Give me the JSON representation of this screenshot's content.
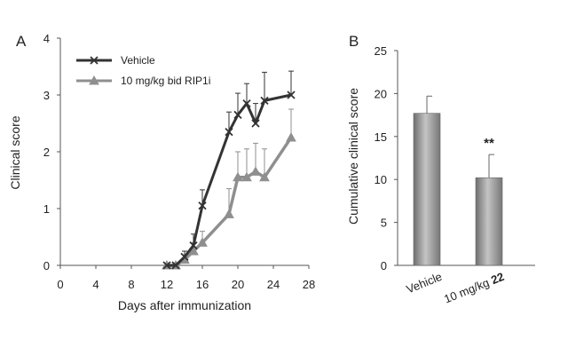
{
  "chart_data": [
    {
      "panel": "A",
      "type": "line",
      "xlabel": "Days after immunization",
      "ylabel": "Clinical score",
      "xlim": [
        0,
        28
      ],
      "ylim": [
        0,
        4
      ],
      "x_ticks": [
        0,
        4,
        8,
        12,
        16,
        20,
        24,
        28
      ],
      "y_ticks": [
        0,
        1,
        2,
        3,
        4
      ],
      "legend_position": "top-left",
      "series": [
        {
          "name": "Vehicle",
          "marker": "x",
          "color": "#333333",
          "x": [
            12,
            13,
            14,
            15,
            16,
            19,
            20,
            21,
            22,
            23,
            26
          ],
          "y": [
            0,
            0,
            0.15,
            0.35,
            1.05,
            2.35,
            2.65,
            2.85,
            2.5,
            2.9,
            3.0
          ],
          "err": [
            0,
            0,
            0.1,
            0.2,
            0.28,
            0.35,
            0.38,
            0.35,
            0.35,
            0.5,
            0.42
          ]
        },
        {
          "name": "10 mg/kg bid RIP1i",
          "marker": "triangle",
          "color": "#8f8f8f",
          "x": [
            12,
            13,
            14,
            15,
            16,
            19,
            20,
            21,
            22,
            23,
            26
          ],
          "y": [
            0,
            0,
            0.1,
            0.25,
            0.4,
            0.9,
            1.55,
            1.55,
            1.65,
            1.55,
            2.25
          ],
          "err": [
            0,
            0,
            0.08,
            0.15,
            0.2,
            0.45,
            0.45,
            0.5,
            0.5,
            0.5,
            0.5
          ]
        }
      ]
    },
    {
      "panel": "B",
      "type": "bar",
      "xlabel": "",
      "ylabel": "Cumulative clinical score",
      "ylim": [
        0,
        25
      ],
      "y_ticks": [
        0,
        5,
        10,
        15,
        20,
        25
      ],
      "categories": [
        "Vehicle",
        "10 mg/kg 22"
      ],
      "category_parts": [
        {
          "plain": "Vehicle",
          "bold": ""
        },
        {
          "plain": "10 mg/kg ",
          "bold": "22"
        }
      ],
      "values": [
        17.7,
        10.2
      ],
      "errors": [
        2.0,
        2.7
      ],
      "annotations": [
        "",
        "**"
      ]
    }
  ]
}
